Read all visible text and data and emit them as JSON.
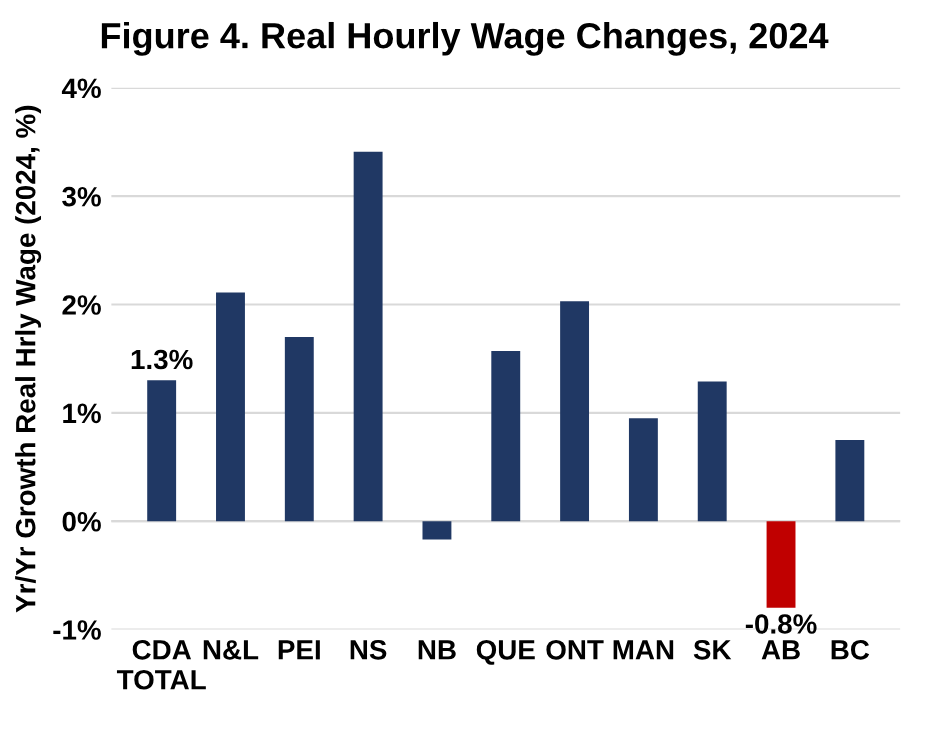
{
  "chart_data": {
    "type": "bar",
    "title": "Figure 4. Real Hourly Wage Changes, 2024",
    "ylabel": "Yr/Yr Growth Real Hrly Wage (2024, %)",
    "categories": [
      "CDA\nTOTAL",
      "N&L",
      "PEI",
      "NS",
      "NB",
      "QUE",
      "ONT",
      "MAN",
      "SK",
      "AB",
      "BC"
    ],
    "values": [
      1.3,
      2.11,
      1.7,
      3.41,
      -0.17,
      1.57,
      2.03,
      0.95,
      1.29,
      -0.8,
      0.75
    ],
    "colors": [
      "#203864",
      "#203864",
      "#203864",
      "#203864",
      "#203864",
      "#203864",
      "#203864",
      "#203864",
      "#203864",
      "#c00000",
      "#203864"
    ],
    "value_labels": [
      "1.3%",
      null,
      null,
      null,
      null,
      null,
      null,
      null,
      null,
      "-0.8%",
      null
    ],
    "ylim": [
      -1,
      4
    ],
    "yticks": [
      {
        "value": -1,
        "label": "-1%"
      },
      {
        "value": 0,
        "label": "0%"
      },
      {
        "value": 1,
        "label": "1%"
      },
      {
        "value": 2,
        "label": "2%"
      },
      {
        "value": 3,
        "label": "3%"
      },
      {
        "value": 4,
        "label": "4%"
      }
    ],
    "grid": "y"
  }
}
